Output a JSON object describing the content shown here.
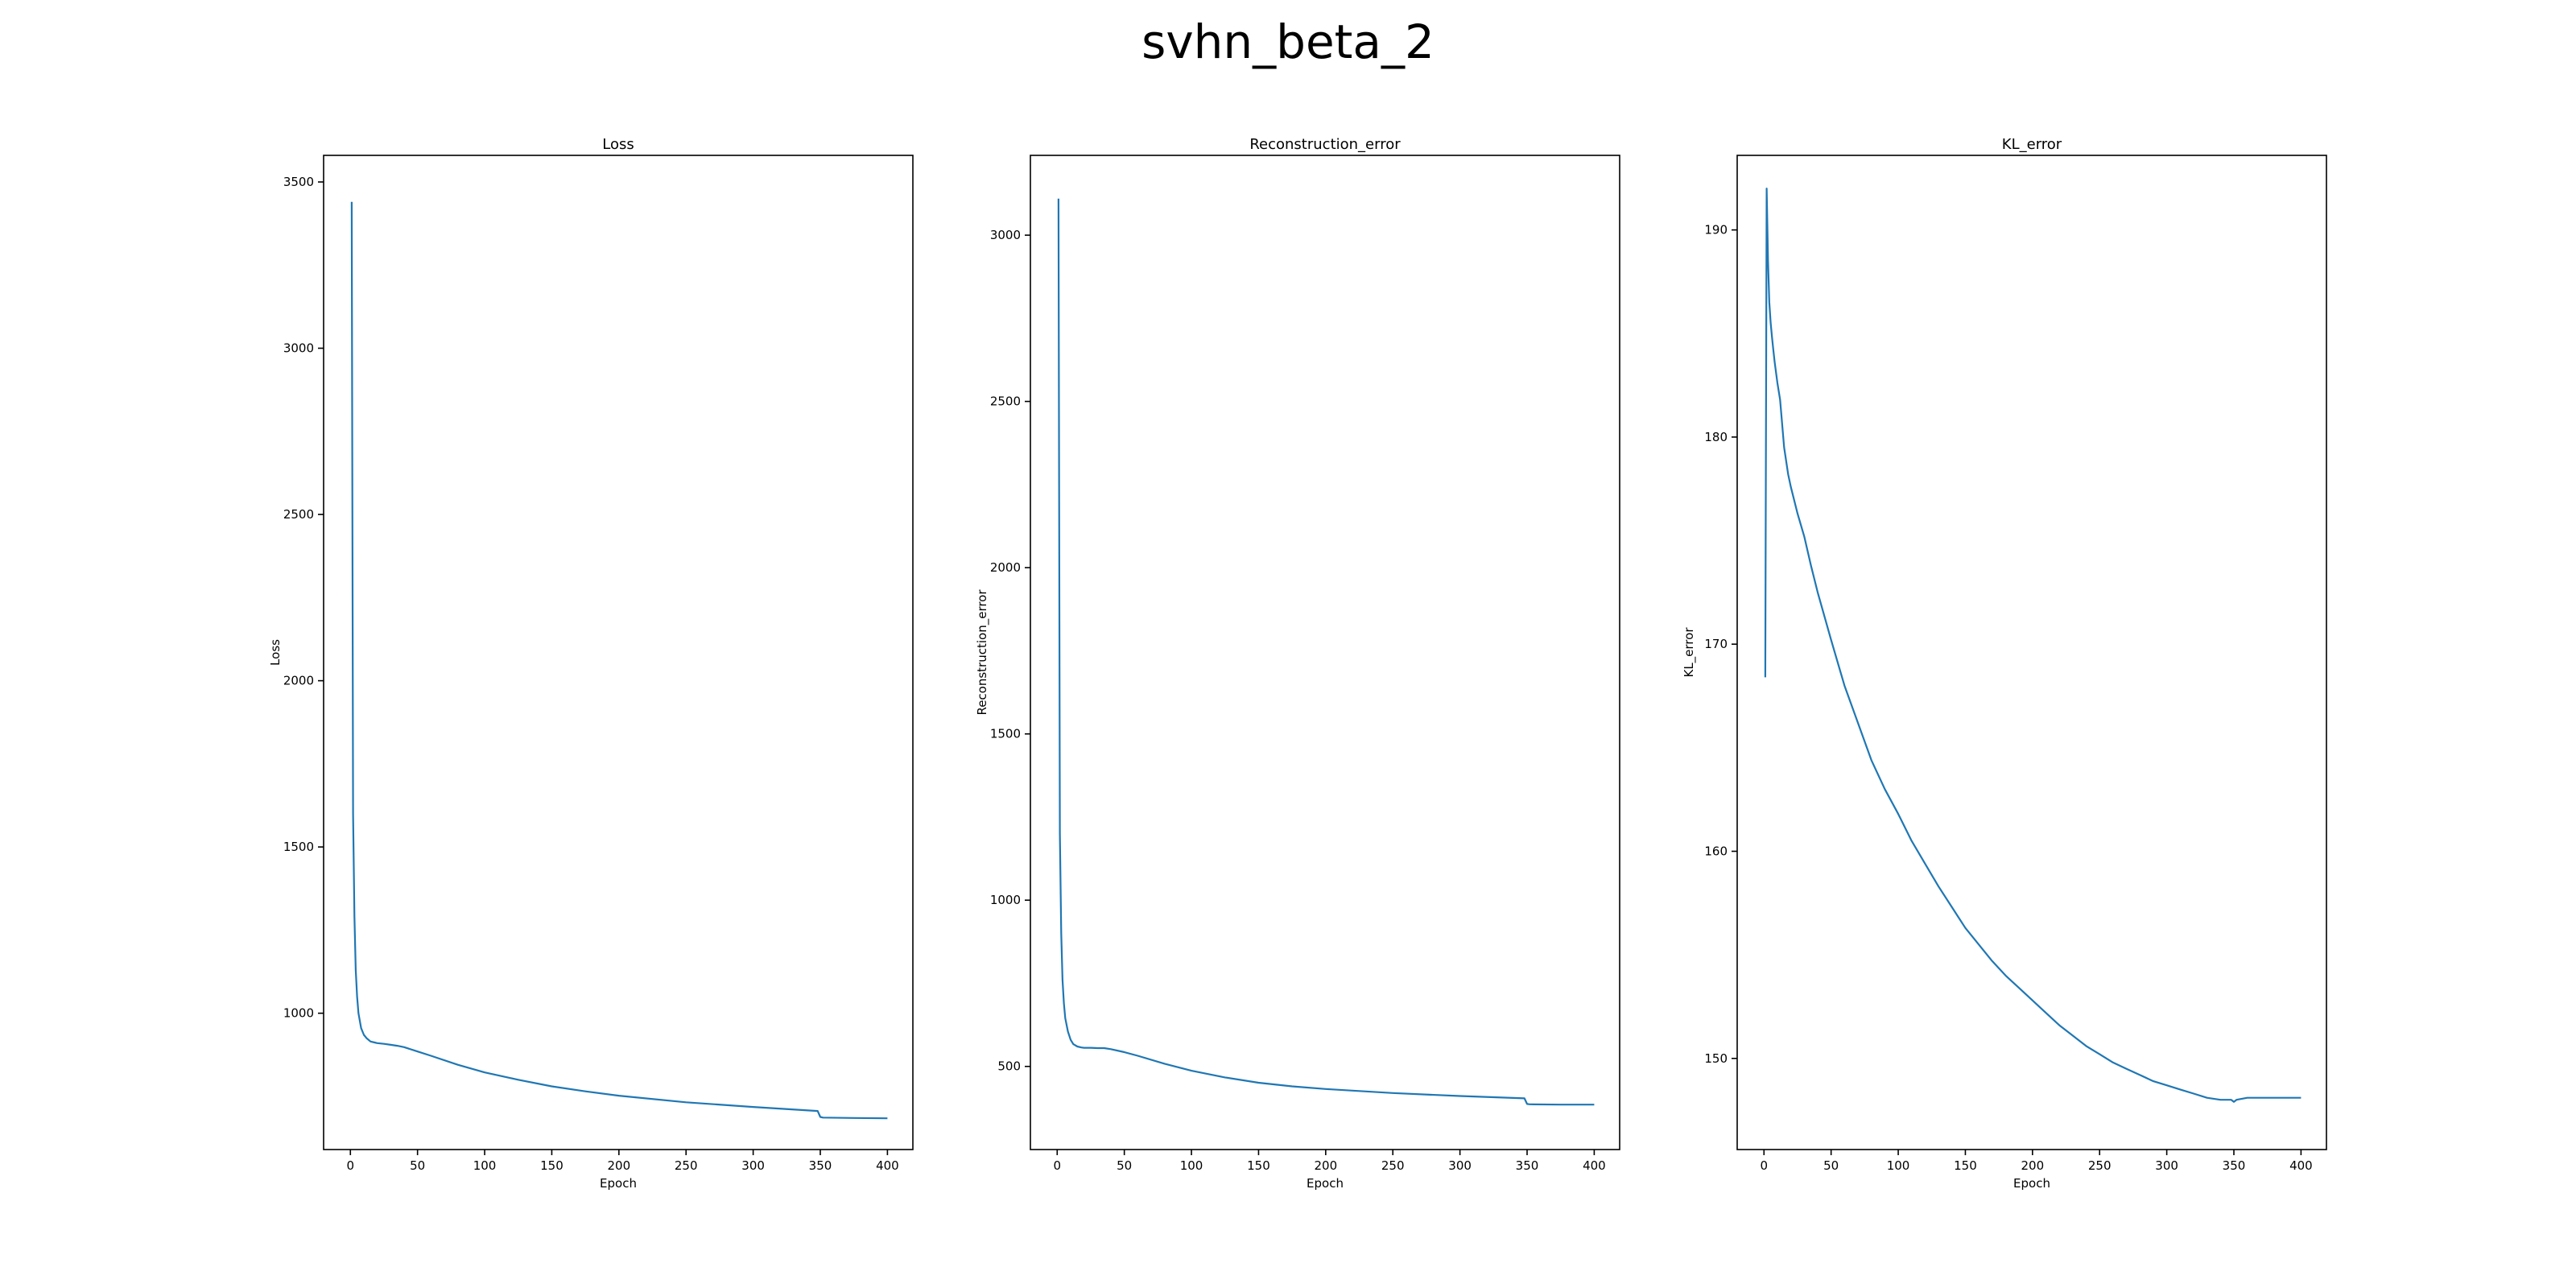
{
  "figure": {
    "title": "svhn_beta_2"
  },
  "series_color": "#1f77b4",
  "chart_data": [
    {
      "type": "line",
      "title": "Loss",
      "xlabel": "Epoch",
      "ylabel": "Loss",
      "grid": false,
      "xlim": [
        -19.95,
        418.95
      ],
      "ylim": [
        590,
        3580
      ],
      "xticks": [
        0,
        50,
        100,
        150,
        200,
        250,
        300,
        350,
        400
      ],
      "yticks": [
        1000,
        1500,
        2000,
        2500,
        3000,
        3500
      ],
      "x": [
        1,
        2,
        3,
        4,
        5,
        6,
        8,
        10,
        12,
        15,
        18,
        20,
        25,
        30,
        35,
        40,
        50,
        60,
        80,
        100,
        125,
        150,
        175,
        200,
        250,
        300,
        348,
        350,
        352,
        375,
        400
      ],
      "y": [
        3440,
        1600,
        1290,
        1130,
        1050,
        1000,
        955,
        935,
        925,
        915,
        912,
        910,
        908,
        905,
        902,
        898,
        885,
        872,
        845,
        822,
        800,
        780,
        765,
        752,
        732,
        718,
        706,
        688,
        686,
        685,
        684
      ]
    },
    {
      "type": "line",
      "title": "Reconstruction_error",
      "xlabel": "Epoch",
      "ylabel": "Reconstruction_error",
      "grid": false,
      "xlim": [
        -19.95,
        418.95
      ],
      "ylim": [
        250,
        3240
      ],
      "xticks": [
        0,
        50,
        100,
        150,
        200,
        250,
        300,
        350,
        400
      ],
      "yticks": [
        500,
        1000,
        1500,
        2000,
        2500,
        3000
      ],
      "x": [
        1,
        2,
        3,
        4,
        5,
        6,
        8,
        10,
        12,
        15,
        18,
        20,
        25,
        30,
        35,
        40,
        50,
        60,
        80,
        100,
        125,
        150,
        175,
        200,
        250,
        300,
        348,
        350,
        352,
        375,
        400
      ],
      "y": [
        3110,
        1200,
        900,
        760,
        690,
        645,
        605,
        580,
        567,
        560,
        557,
        556,
        556,
        555,
        555,
        552,
        543,
        532,
        508,
        487,
        467,
        451,
        440,
        432,
        420,
        411,
        404,
        387,
        386,
        385,
        385
      ]
    },
    {
      "type": "line",
      "title": "KL_error",
      "xlabel": "Epoch",
      "ylabel": "KL_error",
      "grid": false,
      "xlim": [
        -19.95,
        418.95
      ],
      "ylim": [
        145.6,
        193.6
      ],
      "xticks": [
        0,
        50,
        100,
        150,
        200,
        250,
        300,
        350,
        400
      ],
      "yticks": [
        150,
        160,
        170,
        180,
        190
      ],
      "x": [
        1,
        2,
        3,
        4,
        5,
        6,
        7,
        8,
        10,
        12,
        15,
        18,
        20,
        25,
        30,
        35,
        40,
        50,
        60,
        70,
        80,
        90,
        100,
        110,
        120,
        130,
        140,
        150,
        160,
        170,
        180,
        190,
        200,
        210,
        220,
        230,
        240,
        250,
        260,
        270,
        280,
        290,
        300,
        310,
        320,
        330,
        340,
        348,
        350,
        352,
        360,
        370,
        380,
        390,
        400
      ],
      "y": [
        168.4,
        192,
        188.5,
        186.5,
        185.5,
        184.8,
        184.2,
        183.6,
        182.6,
        181.8,
        179.5,
        178.2,
        177.6,
        176.3,
        175.2,
        173.8,
        172.5,
        170.2,
        168.0,
        166.2,
        164.4,
        163.0,
        161.8,
        160.5,
        159.4,
        158.3,
        157.3,
        156.3,
        155.5,
        154.7,
        154.0,
        153.4,
        152.8,
        152.2,
        151.6,
        151.1,
        150.6,
        150.2,
        149.8,
        149.5,
        149.2,
        148.9,
        148.7,
        148.5,
        148.3,
        148.1,
        148.0,
        148.0,
        147.9,
        148.0,
        148.1,
        148.1,
        148.1,
        148.1,
        148.1
      ]
    }
  ]
}
